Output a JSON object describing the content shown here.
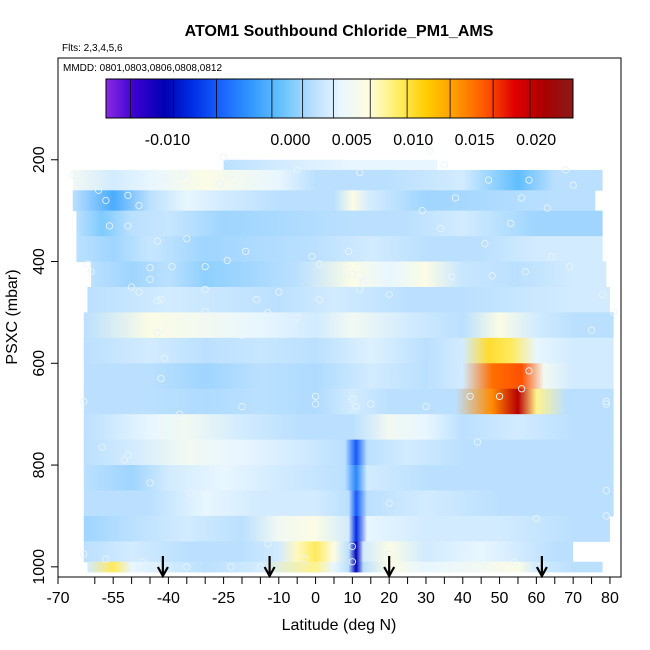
{
  "chart_data": {
    "type": "heatmap",
    "title": "ATOM1 Southbound Chloride_PM1_AMS",
    "flights_note": "Flts: 2,3,4,5,6",
    "dates_note": "MMDD: 0801,0803,0806,0808,0812",
    "xlabel": "Latitude (deg N)",
    "ylabel": "PSXC (mbar)",
    "xlim": [
      -70,
      83
    ],
    "ylim": [
      1020,
      0
    ],
    "x_ticks": [
      -70,
      -55,
      -40,
      -25,
      -10,
      0,
      10,
      20,
      30,
      40,
      50,
      60,
      70,
      80
    ],
    "x_tick_labels": [
      "-70",
      "-55",
      "-40",
      "-25",
      "-10",
      "0",
      "10",
      "20",
      "30",
      "40",
      "50",
      "60",
      "70",
      "80"
    ],
    "x_minor_ticks": [
      -60,
      -50,
      -45,
      -35,
      -30,
      -20,
      -15,
      -5,
      5,
      15,
      25,
      35,
      45,
      55,
      65,
      75
    ],
    "y_ticks": [
      200,
      400,
      600,
      800,
      1000
    ],
    "y_tick_labels": [
      "200",
      "400",
      "600",
      "800",
      "1000"
    ],
    "colorbar": {
      "range": [
        -0.015,
        0.023
      ],
      "tick_values": [
        -0.01,
        0.0,
        0.005,
        0.01,
        0.015,
        0.02
      ],
      "tick_labels": [
        "-0.010",
        "0.000",
        "0.005",
        "0.010",
        "0.015",
        "0.020"
      ],
      "divider_values": [
        -0.013,
        -0.0095,
        -0.006,
        -0.0015,
        0.001,
        0.0035,
        0.0065,
        0.0095,
        0.013,
        0.0165,
        0.0195
      ],
      "colors": [
        "#8a2be2",
        "#3a00d0",
        "#0000b4",
        "#0030e6",
        "#1a66ff",
        "#3399ff",
        "#66c2ff",
        "#b3dcff",
        "#e8f6ff",
        "#fffde0",
        "#ffee66",
        "#ffcc00",
        "#ff9900",
        "#ff5500",
        "#e00000",
        "#aa0000",
        "#8b1a1a"
      ]
    },
    "layer_bounds_mbar": [
      200,
      220,
      260,
      300,
      350,
      400,
      450,
      500,
      550,
      600,
      650,
      700,
      750,
      800,
      850,
      900,
      950,
      990,
      1010
    ],
    "layer_x_extent_deg": [
      [
        -25,
        33
      ],
      [
        -66,
        78
      ],
      [
        -66,
        76
      ],
      [
        -65,
        78
      ],
      [
        -65,
        78
      ],
      [
        -61,
        79
      ],
      [
        -62,
        80
      ],
      [
        -63,
        81
      ],
      [
        -63,
        81
      ],
      [
        -63,
        81
      ],
      [
        -63,
        81
      ],
      [
        -63,
        81
      ],
      [
        -63,
        81
      ],
      [
        -63,
        81
      ],
      [
        -63,
        81
      ],
      [
        -63,
        80
      ],
      [
        -63,
        70
      ],
      [
        -62,
        78
      ]
    ],
    "layer_segments": [
      [
        [
          -25,
          0.002
        ],
        [
          -10,
          0.003
        ],
        [
          10,
          0.004
        ],
        [
          25,
          0.004
        ]
      ],
      [
        [
          -66,
          0.005
        ],
        [
          -55,
          0.003
        ],
        [
          -45,
          0.004
        ],
        [
          -30,
          0.006
        ],
        [
          -10,
          0.004
        ],
        [
          0,
          0.002
        ],
        [
          20,
          0.002
        ],
        [
          40,
          0.003
        ],
        [
          55,
          -0.001
        ],
        [
          65,
          0.002
        ]
      ],
      [
        [
          -66,
          0.002
        ],
        [
          -55,
          -0.002
        ],
        [
          -45,
          0.002
        ],
        [
          -35,
          0.004
        ],
        [
          -25,
          0.003
        ],
        [
          -10,
          0.002
        ],
        [
          5,
          0.002
        ],
        [
          10,
          0.006
        ],
        [
          15,
          0.003
        ],
        [
          30,
          0.001
        ],
        [
          50,
          0.0015
        ],
        [
          65,
          0.002
        ]
      ],
      [
        [
          -65,
          0.002
        ],
        [
          -58,
          0.0
        ],
        [
          -50,
          0.002
        ],
        [
          -40,
          0.0025
        ],
        [
          -25,
          0.001
        ],
        [
          -5,
          0.0015
        ],
        [
          10,
          0.002
        ],
        [
          25,
          0.002
        ],
        [
          40,
          0.003
        ],
        [
          60,
          0.001
        ]
      ],
      [
        [
          -65,
          0.002
        ],
        [
          -55,
          0.001
        ],
        [
          -45,
          0.0025
        ],
        [
          -30,
          0.001
        ],
        [
          -15,
          0.0015
        ],
        [
          0,
          0.002
        ],
        [
          15,
          0.003
        ],
        [
          30,
          0.002
        ],
        [
          45,
          0.002
        ],
        [
          60,
          0.003
        ]
      ],
      [
        [
          -61,
          0.002
        ],
        [
          -50,
          0.001
        ],
        [
          -40,
          0.002
        ],
        [
          -30,
          0.0005
        ],
        [
          -20,
          0.001
        ],
        [
          -5,
          0.002
        ],
        [
          10,
          0.006
        ],
        [
          20,
          0.004
        ],
        [
          30,
          0.006
        ],
        [
          40,
          0.0025
        ],
        [
          55,
          0.002
        ],
        [
          70,
          0.003
        ]
      ],
      [
        [
          -62,
          0.002
        ],
        [
          -50,
          0.0025
        ],
        [
          -40,
          0.003
        ],
        [
          -25,
          0.0025
        ],
        [
          -10,
          0.002
        ],
        [
          5,
          0.003
        ],
        [
          15,
          0.0025
        ],
        [
          25,
          0.002
        ],
        [
          40,
          0.002
        ],
        [
          55,
          0.0025
        ],
        [
          70,
          0.003
        ]
      ],
      [
        [
          -63,
          0.002
        ],
        [
          -45,
          0.006
        ],
        [
          -30,
          0.005
        ],
        [
          -15,
          0.004
        ],
        [
          0,
          0.003
        ],
        [
          10,
          0.005
        ],
        [
          25,
          0.003
        ],
        [
          40,
          0.002
        ],
        [
          50,
          0.006
        ],
        [
          60,
          0.003
        ],
        [
          70,
          0.002
        ]
      ],
      [
        [
          -63,
          0.002
        ],
        [
          -45,
          0.003
        ],
        [
          -30,
          0.002
        ],
        [
          -15,
          0.0025
        ],
        [
          0,
          0.002
        ],
        [
          15,
          0.0035
        ],
        [
          30,
          0.002
        ],
        [
          40,
          0.003
        ],
        [
          47,
          0.01
        ],
        [
          53,
          0.009
        ],
        [
          60,
          0.004
        ],
        [
          70,
          0.003
        ]
      ],
      [
        [
          -63,
          0.002
        ],
        [
          -45,
          0.002
        ],
        [
          -30,
          0.001
        ],
        [
          -15,
          0.002
        ],
        [
          0,
          0.0015
        ],
        [
          15,
          0.003
        ],
        [
          30,
          0.002
        ],
        [
          40,
          0.003
        ],
        [
          48,
          0.015
        ],
        [
          56,
          0.016
        ],
        [
          62,
          0.005
        ],
        [
          70,
          0.003
        ]
      ],
      [
        [
          -63,
          0.002
        ],
        [
          -45,
          0.002
        ],
        [
          -30,
          0.0015
        ],
        [
          -15,
          0.002
        ],
        [
          0,
          0.0015
        ],
        [
          10,
          0.003
        ],
        [
          20,
          0.002
        ],
        [
          38,
          0.002
        ],
        [
          48,
          0.014
        ],
        [
          55,
          0.02
        ],
        [
          60,
          0.008
        ],
        [
          68,
          0.002
        ]
      ],
      [
        [
          -63,
          0.002
        ],
        [
          -45,
          0.004
        ],
        [
          -35,
          0.005
        ],
        [
          -20,
          0.003
        ],
        [
          -5,
          0.002
        ],
        [
          10,
          0.002
        ],
        [
          20,
          0.005
        ],
        [
          30,
          0.004
        ],
        [
          40,
          0.002
        ],
        [
          55,
          0.003
        ],
        [
          70,
          0.002
        ]
      ],
      [
        [
          -63,
          0.002
        ],
        [
          -50,
          0.003
        ],
        [
          -35,
          0.005
        ],
        [
          -20,
          0.004
        ],
        [
          -5,
          0.003
        ],
        [
          8,
          0.002
        ],
        [
          11,
          -0.006
        ],
        [
          14,
          0.002
        ],
        [
          25,
          0.003
        ],
        [
          40,
          0.002
        ],
        [
          60,
          0.002
        ]
      ],
      [
        [
          -63,
          0.002
        ],
        [
          -50,
          0.001
        ],
        [
          -40,
          0.003
        ],
        [
          -25,
          0.004
        ],
        [
          -10,
          0.003
        ],
        [
          8,
          0.002
        ],
        [
          11,
          -0.004
        ],
        [
          14,
          0.003
        ],
        [
          30,
          0.002
        ],
        [
          50,
          0.002
        ],
        [
          70,
          0.002
        ]
      ],
      [
        [
          -63,
          0.002
        ],
        [
          -45,
          0.002
        ],
        [
          -30,
          0.004
        ],
        [
          -15,
          0.003
        ],
        [
          0,
          0.003
        ],
        [
          9,
          0.002
        ],
        [
          11,
          -0.006
        ],
        [
          14,
          0.002
        ],
        [
          30,
          0.003
        ],
        [
          50,
          0.002
        ],
        [
          70,
          0.002
        ]
      ],
      [
        [
          -63,
          0.001
        ],
        [
          -50,
          0.002
        ],
        [
          -35,
          0.003
        ],
        [
          -20,
          0.002
        ],
        [
          -10,
          0.005
        ],
        [
          0,
          0.006
        ],
        [
          9,
          0.003
        ],
        [
          11,
          -0.008
        ],
        [
          14,
          0.004
        ],
        [
          30,
          0.003
        ],
        [
          50,
          0.003
        ],
        [
          70,
          0.002
        ]
      ],
      [
        [
          -63,
          0.002
        ],
        [
          -50,
          0.003
        ],
        [
          -35,
          0.002
        ],
        [
          -20,
          0.002
        ],
        [
          -10,
          0.003
        ],
        [
          -5,
          0.007
        ],
        [
          0,
          0.009
        ],
        [
          5,
          0.006
        ],
        [
          9,
          0.002
        ],
        [
          11,
          -0.01
        ],
        [
          13,
          0.003
        ],
        [
          20,
          0.006
        ],
        [
          30,
          0.003
        ],
        [
          45,
          0.004
        ],
        [
          55,
          0.003
        ],
        [
          65,
          0.002
        ]
      ],
      [
        [
          -62,
          0.003
        ],
        [
          -55,
          0.009
        ],
        [
          -50,
          0.004
        ],
        [
          -40,
          0.003
        ],
        [
          -30,
          0.002
        ],
        [
          -15,
          0.003
        ],
        [
          0,
          0.008
        ],
        [
          5,
          0.004
        ],
        [
          9,
          0.002
        ],
        [
          11,
          -0.01
        ],
        [
          13,
          0.002
        ],
        [
          20,
          0.006
        ],
        [
          30,
          0.004
        ],
        [
          45,
          0.005
        ],
        [
          55,
          0.006
        ],
        [
          60,
          0.003
        ],
        [
          70,
          0.002
        ]
      ]
    ],
    "sample_points": [
      [
        -25,
        195
      ],
      [
        31,
        182
      ],
      [
        -41,
        235
      ],
      [
        -36,
        230
      ],
      [
        -23,
        230
      ],
      [
        -5,
        220
      ],
      [
        12,
        225
      ],
      [
        35,
        210
      ],
      [
        68,
        220
      ],
      [
        -66,
        230
      ],
      [
        -59,
        260
      ],
      [
        -57,
        280
      ],
      [
        -51,
        270
      ],
      [
        -26,
        248
      ],
      [
        -64,
        245
      ],
      [
        47,
        240
      ],
      [
        58,
        240
      ],
      [
        70,
        250
      ],
      [
        -48,
        290
      ],
      [
        -56,
        330
      ],
      [
        -51,
        330
      ],
      [
        -43,
        360
      ],
      [
        -35,
        355
      ],
      [
        -19,
        380
      ],
      [
        -24,
        398
      ],
      [
        -1,
        390
      ],
      [
        1,
        405
      ],
      [
        9,
        380
      ],
      [
        10,
        425
      ],
      [
        13,
        440
      ],
      [
        29,
        300
      ],
      [
        38,
        275
      ],
      [
        56,
        275
      ],
      [
        63,
        295
      ],
      [
        53,
        325
      ],
      [
        46,
        365
      ],
      [
        34,
        335
      ],
      [
        64,
        390
      ],
      [
        69,
        410
      ],
      [
        -62,
        405
      ],
      [
        -61,
        420
      ],
      [
        -45,
        412
      ],
      [
        -30,
        410
      ],
      [
        -39,
        410
      ],
      [
        -50,
        450
      ],
      [
        -45,
        435
      ],
      [
        -30,
        455
      ],
      [
        -48,
        460
      ],
      [
        -42,
        475
      ],
      [
        -16,
        475
      ],
      [
        -10,
        460
      ],
      [
        1,
        475
      ],
      [
        12,
        455
      ],
      [
        20,
        465
      ],
      [
        37,
        430
      ],
      [
        48,
        428
      ],
      [
        57,
        420
      ],
      [
        -43,
        477
      ],
      [
        -30,
        498
      ],
      [
        -13,
        500
      ],
      [
        -43,
        540
      ],
      [
        -5,
        510
      ],
      [
        58,
        615
      ],
      [
        78,
        465
      ],
      [
        81,
        500
      ],
      [
        75,
        535
      ],
      [
        -20,
        545
      ],
      [
        -41,
        590
      ],
      [
        -42,
        630
      ],
      [
        -37,
        700
      ],
      [
        -63,
        675
      ],
      [
        -20,
        685
      ],
      [
        0,
        665
      ],
      [
        0,
        680
      ],
      [
        10,
        670
      ],
      [
        11,
        685
      ],
      [
        15,
        680
      ],
      [
        30,
        685
      ],
      [
        42,
        665
      ],
      [
        50,
        665
      ],
      [
        56,
        650
      ],
      [
        79,
        675
      ],
      [
        79,
        680
      ],
      [
        -58,
        765
      ],
      [
        -52,
        790
      ],
      [
        -51,
        780
      ],
      [
        -45,
        835
      ],
      [
        -34,
        855
      ],
      [
        -22,
        802
      ],
      [
        -23,
        1000
      ],
      [
        -13,
        955
      ],
      [
        20,
        875
      ],
      [
        44,
        755
      ],
      [
        60,
        905
      ],
      [
        79,
        850
      ],
      [
        79,
        900
      ],
      [
        -63,
        975
      ],
      [
        -57,
        985
      ],
      [
        -47,
        990
      ],
      [
        -43,
        1000
      ],
      [
        -35,
        1000
      ],
      [
        -15,
        1000
      ],
      [
        -3,
        985
      ],
      [
        10,
        960
      ],
      [
        10,
        990
      ],
      [
        20,
        975
      ],
      [
        30,
        1000
      ],
      [
        40,
        985
      ],
      [
        46,
        990
      ],
      [
        54,
        990
      ],
      [
        61,
        1000
      ]
    ],
    "arrow_latitudes": [
      -41.5,
      -12.5,
      20,
      61.5
    ]
  }
}
